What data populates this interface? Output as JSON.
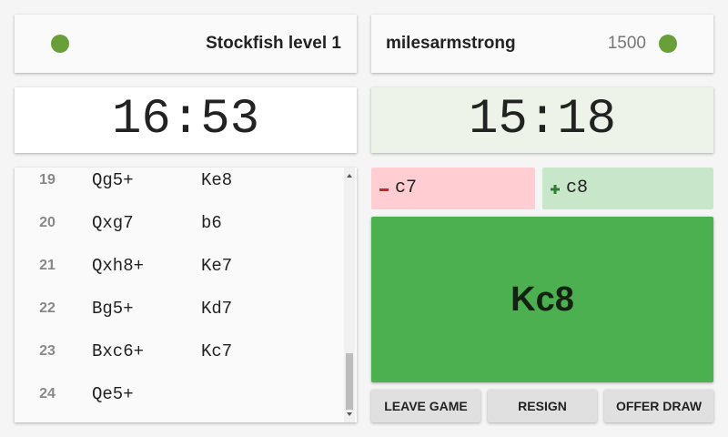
{
  "opponent": {
    "name": "Stockfish level 1"
  },
  "player": {
    "name": "milesarmstrong",
    "rating": "1500"
  },
  "clocks": {
    "opponent": "16:53",
    "player": "15:18"
  },
  "moves": [
    {
      "number": 19,
      "white": "Qg5+",
      "black": "Ke8"
    },
    {
      "number": 20,
      "white": "Qxg7",
      "black": "b6"
    },
    {
      "number": 21,
      "white": "Qxh8+",
      "black": "Ke7"
    },
    {
      "number": 22,
      "white": "Bg5+",
      "black": "Kd7"
    },
    {
      "number": 23,
      "white": "Bxc6+",
      "black": "Kc7"
    },
    {
      "number": 24,
      "white": "Qe5+"
    }
  ],
  "input": {
    "removed": "c7",
    "added": "c8",
    "move": "Kc8"
  },
  "buttons": [
    "LEAVE GAME",
    "RESIGN",
    "OFFER DRAW"
  ]
}
